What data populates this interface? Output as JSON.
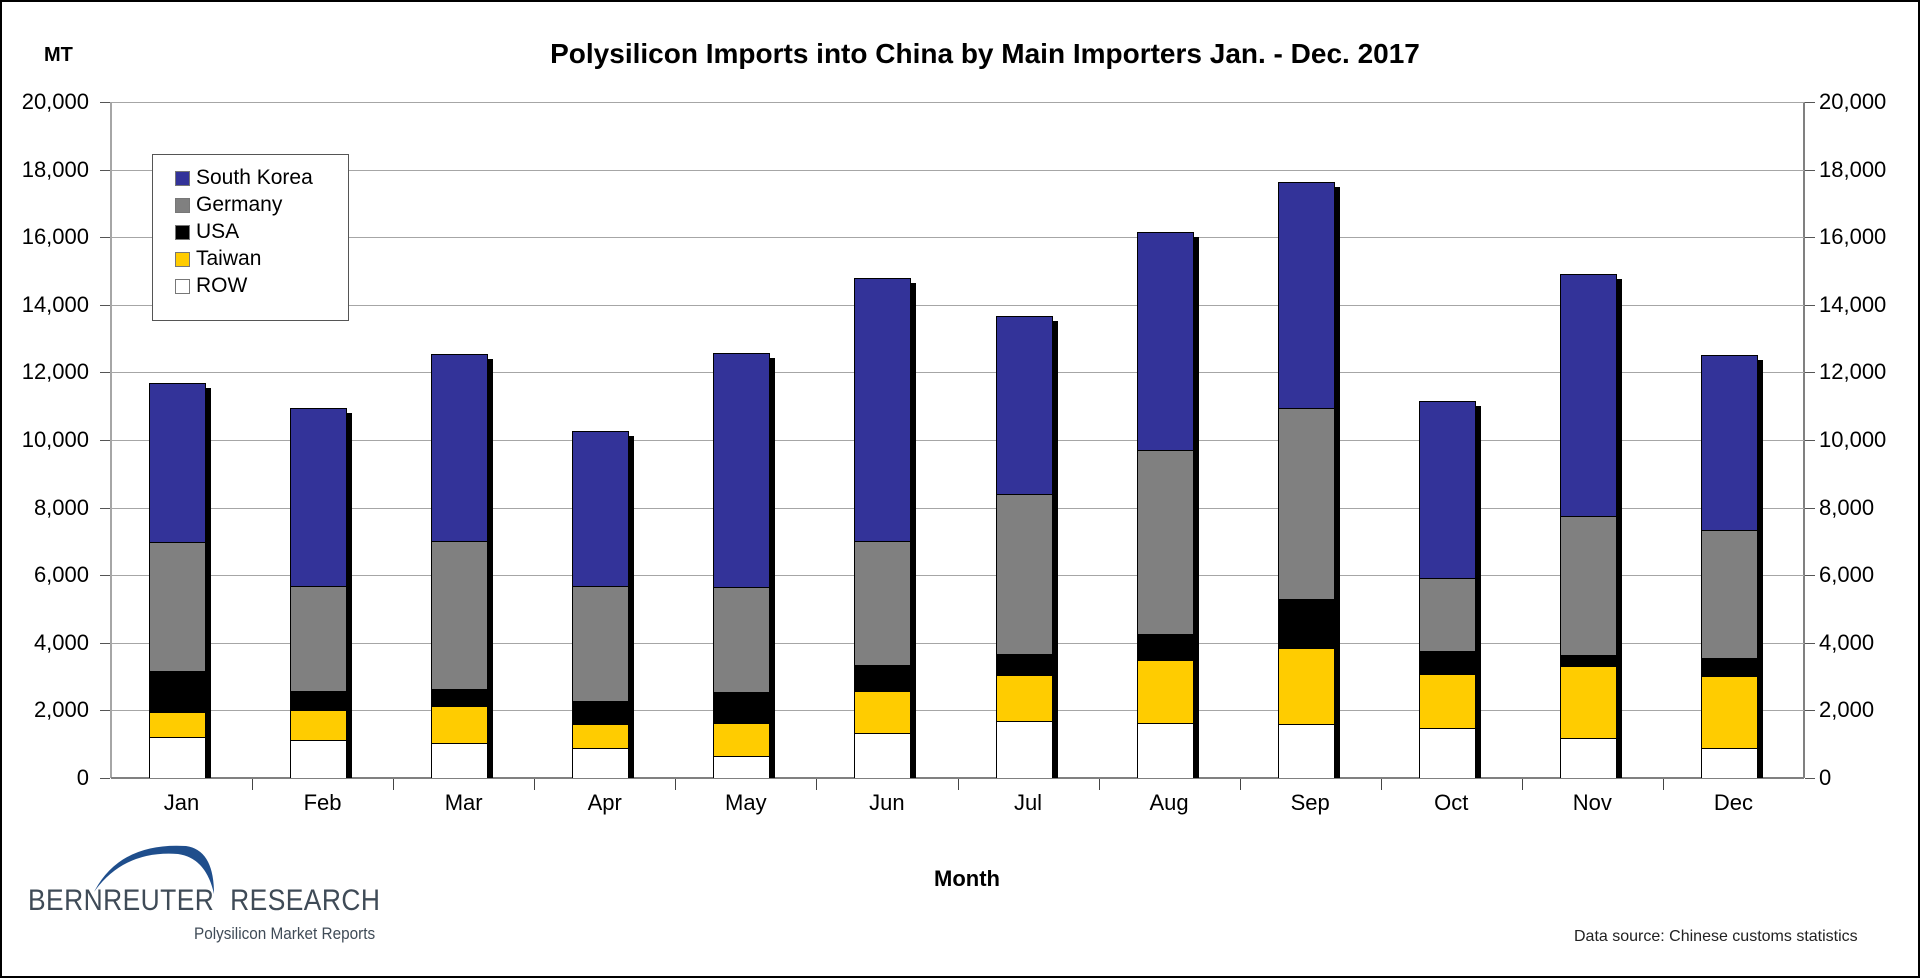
{
  "chart": {
    "unit_label": "MT",
    "title": "Polysilicon Imports into China by Main Importers Jan. - Dec. 2017",
    "x_axis_title": "Month",
    "source": "Data source: Chinese customs statistics",
    "y_ticks": [
      "0",
      "2,000",
      "4,000",
      "6,000",
      "8,000",
      "10,000",
      "12,000",
      "14,000",
      "16,000",
      "18,000",
      "20,000"
    ],
    "legend": [
      {
        "name": "South Korea",
        "color": "#333399"
      },
      {
        "name": "Germany",
        "color": "#808080"
      },
      {
        "name": "USA",
        "color": "#000000"
      },
      {
        "name": "Taiwan",
        "color": "#FFCC00"
      },
      {
        "name": "ROW",
        "color": "#FFFFFF"
      }
    ],
    "logo": {
      "main": "BERNREUTER RESEARCH",
      "main_left": "BERNREUTER",
      "main_right": "RESEARCH",
      "sub": "Polysilicon Market Reports"
    }
  },
  "chart_data": {
    "type": "bar",
    "stacked": true,
    "title": "Polysilicon Imports into China by Main Importers Jan. - Dec. 2017",
    "xlabel": "Month",
    "ylabel": "MT",
    "ylim": [
      0,
      20000
    ],
    "y_tick_step": 2000,
    "secondary_y_axis": true,
    "grid": true,
    "legend_position": "upper-left inside",
    "categories": [
      "Jan",
      "Feb",
      "Mar",
      "Apr",
      "May",
      "Jun",
      "Jul",
      "Aug",
      "Sep",
      "Oct",
      "Nov",
      "Dec"
    ],
    "series": [
      {
        "name": "ROW",
        "color": "#FFFFFF",
        "values": [
          1200,
          1110,
          1040,
          900,
          650,
          1330,
          1680,
          1620,
          1600,
          1470,
          1180,
          900
        ]
      },
      {
        "name": "Taiwan",
        "color": "#FFCC00",
        "values": [
          740,
          890,
          1080,
          710,
          990,
          1250,
          1370,
          1870,
          2240,
          1610,
          2130,
          2120
        ]
      },
      {
        "name": "USA",
        "color": "#000000",
        "values": [
          1240,
          560,
          500,
          670,
          910,
          750,
          620,
          770,
          1470,
          670,
          320,
          520
        ]
      },
      {
        "name": "Germany",
        "color": "#808080",
        "values": [
          3800,
          3130,
          4400,
          3410,
          3110,
          3670,
          4740,
          5440,
          5650,
          2170,
          4110,
          3790
        ]
      },
      {
        "name": "South Korea",
        "color": "#333399",
        "values": [
          4710,
          5260,
          5520,
          4590,
          6910,
          7800,
          5260,
          6440,
          6680,
          5220,
          7170,
          5190
        ]
      }
    ],
    "totals": [
      11690,
      10950,
      12540,
      10280,
      12570,
      14800,
      13670,
      16140,
      17640,
      11140,
      14910,
      12520
    ],
    "annotations": [
      "Data source: Chinese customs statistics"
    ]
  }
}
